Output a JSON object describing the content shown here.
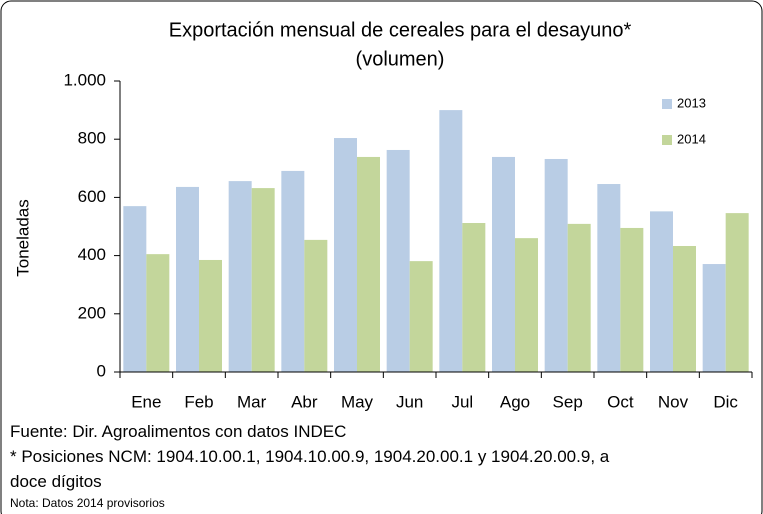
{
  "chart_data": {
    "type": "bar",
    "title": "Exportación mensual de cereales para el desayuno*",
    "subtitle": "(volumen)",
    "y_label": "Toneladas",
    "categories": [
      "Ene",
      "Feb",
      "Mar",
      "Abr",
      "May",
      "Jun",
      "Jul",
      "Ago",
      "Sep",
      "Oct",
      "Nov",
      "Dic"
    ],
    "series": [
      {
        "name": "2013",
        "color": "#b9cde5",
        "values": [
          570,
          636,
          656,
          691,
          804,
          763,
          900,
          739,
          732,
          646,
          552,
          371
        ]
      },
      {
        "name": "2014",
        "color": "#c3d69b",
        "values": [
          405,
          385,
          632,
          454,
          739,
          381,
          512,
          460,
          509,
          495,
          433,
          546
        ]
      }
    ],
    "ylim": [
      0,
      1000
    ],
    "yticks": [
      0,
      200,
      400,
      600,
      800,
      {
        "value": 1000,
        "label": "1.000"
      }
    ],
    "legend": "top-right",
    "notes": [
      "Fuente: Dir. Agroalimentos con datos INDEC",
      "* Posiciones NCM:  1904.10.00.1, 1904.10.00.9, 1904.20.00.1 y 1904.20.00.9, a doce dígitos"
    ],
    "footnote": "Nota: Datos 2014 provisorios"
  }
}
